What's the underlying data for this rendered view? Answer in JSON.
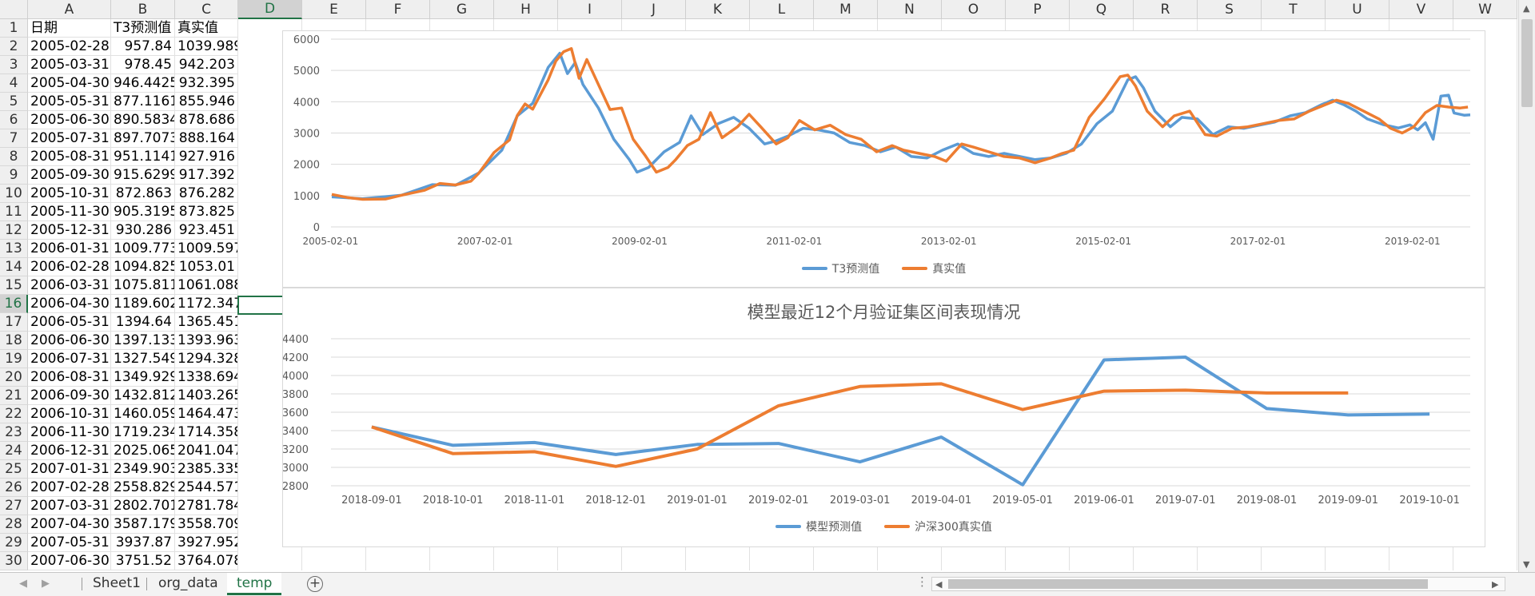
{
  "sheet": {
    "columns": [
      "A",
      "B",
      "C",
      "D",
      "E",
      "F",
      "G",
      "H",
      "I",
      "J",
      "K",
      "L",
      "M",
      "N",
      "O",
      "P",
      "Q",
      "R",
      "S",
      "T",
      "U",
      "V",
      "W"
    ],
    "selected_column": "D",
    "selected_row": "16",
    "rows": [
      {
        "num": "1",
        "a": "日期",
        "b": "T3预测值",
        "c": "真实值"
      },
      {
        "num": "2",
        "a": "2005-02-28",
        "b": "957.84",
        "c": "1039.989"
      },
      {
        "num": "3",
        "a": "2005-03-31",
        "b": "978.45",
        "c": "942.203"
      },
      {
        "num": "4",
        "a": "2005-04-30",
        "b": "946.4425",
        "c": "932.395"
      },
      {
        "num": "5",
        "a": "2005-05-31",
        "b": "877.1161",
        "c": "855.946"
      },
      {
        "num": "6",
        "a": "2005-06-30",
        "b": "890.5834",
        "c": "878.686"
      },
      {
        "num": "7",
        "a": "2005-07-31",
        "b": "897.7073",
        "c": "888.164"
      },
      {
        "num": "8",
        "a": "2005-08-31",
        "b": "951.1141",
        "c": "927.916"
      },
      {
        "num": "9",
        "a": "2005-09-30",
        "b": "915.6299",
        "c": "917.392"
      },
      {
        "num": "10",
        "a": "2005-10-31",
        "b": "872.863",
        "c": "876.282"
      },
      {
        "num": "11",
        "a": "2005-11-30",
        "b": "905.3195",
        "c": "873.825"
      },
      {
        "num": "12",
        "a": "2005-12-31",
        "b": "930.286",
        "c": "923.451"
      },
      {
        "num": "13",
        "a": "2006-01-31",
        "b": "1009.773",
        "c": "1009.597"
      },
      {
        "num": "14",
        "a": "2006-02-28",
        "b": "1094.825",
        "c": "1053.01"
      },
      {
        "num": "15",
        "a": "2006-03-31",
        "b": "1075.811",
        "c": "1061.088"
      },
      {
        "num": "16",
        "a": "2006-04-30",
        "b": "1189.602",
        "c": "1172.347"
      },
      {
        "num": "17",
        "a": "2006-05-31",
        "b": "1394.64",
        "c": "1365.451"
      },
      {
        "num": "18",
        "a": "2006-06-30",
        "b": "1397.133",
        "c": "1393.963"
      },
      {
        "num": "19",
        "a": "2006-07-31",
        "b": "1327.549",
        "c": "1294.328"
      },
      {
        "num": "20",
        "a": "2006-08-31",
        "b": "1349.929",
        "c": "1338.694"
      },
      {
        "num": "21",
        "a": "2006-09-30",
        "b": "1432.812",
        "c": "1403.265"
      },
      {
        "num": "22",
        "a": "2006-10-31",
        "b": "1460.059",
        "c": "1464.473"
      },
      {
        "num": "23",
        "a": "2006-11-30",
        "b": "1719.234",
        "c": "1714.358"
      },
      {
        "num": "24",
        "a": "2006-12-31",
        "b": "2025.065",
        "c": "2041.047"
      },
      {
        "num": "25",
        "a": "2007-01-31",
        "b": "2349.903",
        "c": "2385.335"
      },
      {
        "num": "26",
        "a": "2007-02-28",
        "b": "2558.829",
        "c": "2544.571"
      },
      {
        "num": "27",
        "a": "2007-03-31",
        "b": "2802.701",
        "c": "2781.784"
      },
      {
        "num": "28",
        "a": "2007-04-30",
        "b": "3587.179",
        "c": "3558.709"
      },
      {
        "num": "29",
        "a": "2007-05-31",
        "b": "3937.87",
        "c": "3927.952"
      },
      {
        "num": "30",
        "a": "2007-06-30",
        "b": "3751.52",
        "c": "3764.078"
      }
    ]
  },
  "tabs": [
    {
      "label": "Sheet1",
      "active": false
    },
    {
      "label": "org_data",
      "active": false
    },
    {
      "label": "temp",
      "active": true
    }
  ],
  "colors": {
    "blue": "#5b9bd5",
    "orange": "#ed7d31",
    "excel_green": "#217346"
  },
  "chart_data": [
    {
      "type": "line",
      "title": "",
      "x_ticks": [
        "2005-02-01",
        "2007-02-01",
        "2009-02-01",
        "2011-02-01",
        "2013-02-01",
        "2015-02-01",
        "2017-02-01",
        "2019-02-01"
      ],
      "y_ticks": [
        "0",
        "1000",
        "2000",
        "3000",
        "4000",
        "5000",
        "6000"
      ],
      "ylim": [
        0,
        6000
      ],
      "x_range": [
        2005.09,
        2019.83
      ],
      "legend_position": "bottom",
      "series": [
        {
          "name": "T3预测值",
          "color": "#5b9bd5",
          "points": [
            [
              2005.1,
              960
            ],
            [
              2005.5,
              900
            ],
            [
              2006.0,
              1010
            ],
            [
              2006.4,
              1350
            ],
            [
              2006.7,
              1330
            ],
            [
              2007.0,
              1720
            ],
            [
              2007.3,
              2450
            ],
            [
              2007.5,
              3550
            ],
            [
              2007.7,
              3950
            ],
            [
              2007.9,
              5100
            ],
            [
              2008.05,
              5550
            ],
            [
              2008.15,
              4900
            ],
            [
              2008.25,
              5250
            ],
            [
              2008.35,
              4550
            ],
            [
              2008.55,
              3800
            ],
            [
              2008.75,
              2800
            ],
            [
              2008.95,
              2150
            ],
            [
              2009.05,
              1750
            ],
            [
              2009.2,
              1900
            ],
            [
              2009.4,
              2400
            ],
            [
              2009.6,
              2700
            ],
            [
              2009.75,
              3550
            ],
            [
              2009.9,
              2950
            ],
            [
              2010.1,
              3300
            ],
            [
              2010.3,
              3500
            ],
            [
              2010.5,
              3150
            ],
            [
              2010.7,
              2650
            ],
            [
              2010.85,
              2750
            ],
            [
              2011.0,
              2900
            ],
            [
              2011.2,
              3150
            ],
            [
              2011.4,
              3100
            ],
            [
              2011.6,
              3000
            ],
            [
              2011.8,
              2700
            ],
            [
              2012.0,
              2600
            ],
            [
              2012.2,
              2400
            ],
            [
              2012.4,
              2550
            ],
            [
              2012.6,
              2250
            ],
            [
              2012.8,
              2200
            ],
            [
              2013.0,
              2450
            ],
            [
              2013.2,
              2650
            ],
            [
              2013.4,
              2350
            ],
            [
              2013.6,
              2250
            ],
            [
              2013.8,
              2350
            ],
            [
              2014.0,
              2250
            ],
            [
              2014.2,
              2150
            ],
            [
              2014.4,
              2200
            ],
            [
              2014.6,
              2350
            ],
            [
              2014.8,
              2650
            ],
            [
              2015.0,
              3300
            ],
            [
              2015.2,
              3700
            ],
            [
              2015.4,
              4700
            ],
            [
              2015.5,
              4800
            ],
            [
              2015.6,
              4450
            ],
            [
              2015.75,
              3700
            ],
            [
              2015.95,
              3200
            ],
            [
              2016.1,
              3500
            ],
            [
              2016.3,
              3450
            ],
            [
              2016.5,
              2950
            ],
            [
              2016.7,
              3200
            ],
            [
              2016.9,
              3150
            ],
            [
              2017.1,
              3250
            ],
            [
              2017.3,
              3350
            ],
            [
              2017.5,
              3550
            ],
            [
              2017.7,
              3650
            ],
            [
              2017.9,
              3900
            ],
            [
              2018.05,
              4050
            ],
            [
              2018.2,
              3900
            ],
            [
              2018.35,
              3700
            ],
            [
              2018.5,
              3450
            ],
            [
              2018.7,
              3270
            ],
            [
              2018.9,
              3160
            ],
            [
              2019.05,
              3260
            ],
            [
              2019.15,
              3100
            ],
            [
              2019.25,
              3330
            ],
            [
              2019.35,
              2800
            ],
            [
              2019.45,
              4180
            ],
            [
              2019.55,
              4210
            ],
            [
              2019.62,
              3640
            ],
            [
              2019.75,
              3570
            ],
            [
              2019.83,
              3580
            ]
          ]
        },
        {
          "name": "真实值",
          "color": "#ed7d31",
          "points": [
            [
              2005.1,
              1040
            ],
            [
              2005.3,
              940
            ],
            [
              2005.5,
              880
            ],
            [
              2005.8,
              890
            ],
            [
              2006.0,
              1010
            ],
            [
              2006.3,
              1170
            ],
            [
              2006.5,
              1390
            ],
            [
              2006.7,
              1340
            ],
            [
              2006.9,
              1460
            ],
            [
              2007.0,
              1710
            ],
            [
              2007.2,
              2380
            ],
            [
              2007.4,
              2780
            ],
            [
              2007.5,
              3560
            ],
            [
              2007.6,
              3930
            ],
            [
              2007.7,
              3760
            ],
            [
              2007.9,
              4700
            ],
            [
              2008.0,
              5300
            ],
            [
              2008.1,
              5600
            ],
            [
              2008.2,
              5700
            ],
            [
              2008.3,
              4750
            ],
            [
              2008.4,
              5350
            ],
            [
              2008.55,
              4550
            ],
            [
              2008.7,
              3750
            ],
            [
              2008.85,
              3800
            ],
            [
              2009.0,
              2800
            ],
            [
              2009.15,
              2300
            ],
            [
              2009.3,
              1750
            ],
            [
              2009.45,
              1900
            ],
            [
              2009.55,
              2150
            ],
            [
              2009.7,
              2600
            ],
            [
              2009.85,
              2800
            ],
            [
              2010.0,
              3650
            ],
            [
              2010.15,
              2850
            ],
            [
              2010.35,
              3200
            ],
            [
              2010.5,
              3600
            ],
            [
              2010.65,
              3200
            ],
            [
              2010.85,
              2650
            ],
            [
              2011.0,
              2850
            ],
            [
              2011.15,
              3400
            ],
            [
              2011.35,
              3100
            ],
            [
              2011.55,
              3250
            ],
            [
              2011.75,
              2950
            ],
            [
              2011.95,
              2800
            ],
            [
              2012.15,
              2400
            ],
            [
              2012.35,
              2600
            ],
            [
              2012.5,
              2450
            ],
            [
              2012.7,
              2350
            ],
            [
              2012.9,
              2250
            ],
            [
              2013.05,
              2100
            ],
            [
              2013.25,
              2650
            ],
            [
              2013.4,
              2550
            ],
            [
              2013.6,
              2400
            ],
            [
              2013.8,
              2250
            ],
            [
              2014.0,
              2200
            ],
            [
              2014.2,
              2050
            ],
            [
              2014.4,
              2200
            ],
            [
              2014.55,
              2350
            ],
            [
              2014.7,
              2450
            ],
            [
              2014.9,
              3500
            ],
            [
              2015.1,
              4100
            ],
            [
              2015.3,
              4800
            ],
            [
              2015.4,
              4850
            ],
            [
              2015.5,
              4500
            ],
            [
              2015.65,
              3700
            ],
            [
              2015.85,
              3200
            ],
            [
              2016.0,
              3550
            ],
            [
              2016.2,
              3700
            ],
            [
              2016.4,
              2950
            ],
            [
              2016.55,
              2900
            ],
            [
              2016.75,
              3150
            ],
            [
              2016.95,
              3200
            ],
            [
              2017.15,
              3300
            ],
            [
              2017.35,
              3400
            ],
            [
              2017.55,
              3450
            ],
            [
              2017.75,
              3700
            ],
            [
              2017.95,
              3900
            ],
            [
              2018.1,
              4050
            ],
            [
              2018.25,
              3950
            ],
            [
              2018.45,
              3700
            ],
            [
              2018.65,
              3450
            ],
            [
              2018.8,
              3150
            ],
            [
              2018.95,
              3000
            ],
            [
              2019.1,
              3200
            ],
            [
              2019.25,
              3650
            ],
            [
              2019.4,
              3880
            ],
            [
              2019.55,
              3830
            ],
            [
              2019.7,
              3800
            ],
            [
              2019.8,
              3830
            ]
          ]
        }
      ]
    },
    {
      "type": "line",
      "title": "模型最近12个月验证集区间表现情况",
      "categories": [
        "2018-09-01",
        "2018-10-01",
        "2018-11-01",
        "2018-12-01",
        "2019-01-01",
        "2019-02-01",
        "2019-03-01",
        "2019-04-01",
        "2019-05-01",
        "2019-06-01",
        "2019-07-01",
        "2019-08-01",
        "2019-09-01",
        "2019-10-01"
      ],
      "y_ticks": [
        "2800",
        "3000",
        "3200",
        "3400",
        "3600",
        "3800",
        "4000",
        "4200",
        "4400"
      ],
      "ylim": [
        2800,
        4400
      ],
      "legend_position": "bottom",
      "series": [
        {
          "name": "模型预测值",
          "color": "#5b9bd5",
          "values": [
            3440,
            3240,
            3270,
            3140,
            3250,
            3260,
            3060,
            3330,
            2810,
            4170,
            4200,
            3640,
            3570,
            3580
          ]
        },
        {
          "name": "沪深300真实值",
          "color": "#ed7d31",
          "values": [
            3440,
            3150,
            3170,
            3010,
            3200,
            3670,
            3880,
            3910,
            3630,
            3830,
            3840,
            3810,
            3810,
            null
          ]
        }
      ]
    }
  ]
}
